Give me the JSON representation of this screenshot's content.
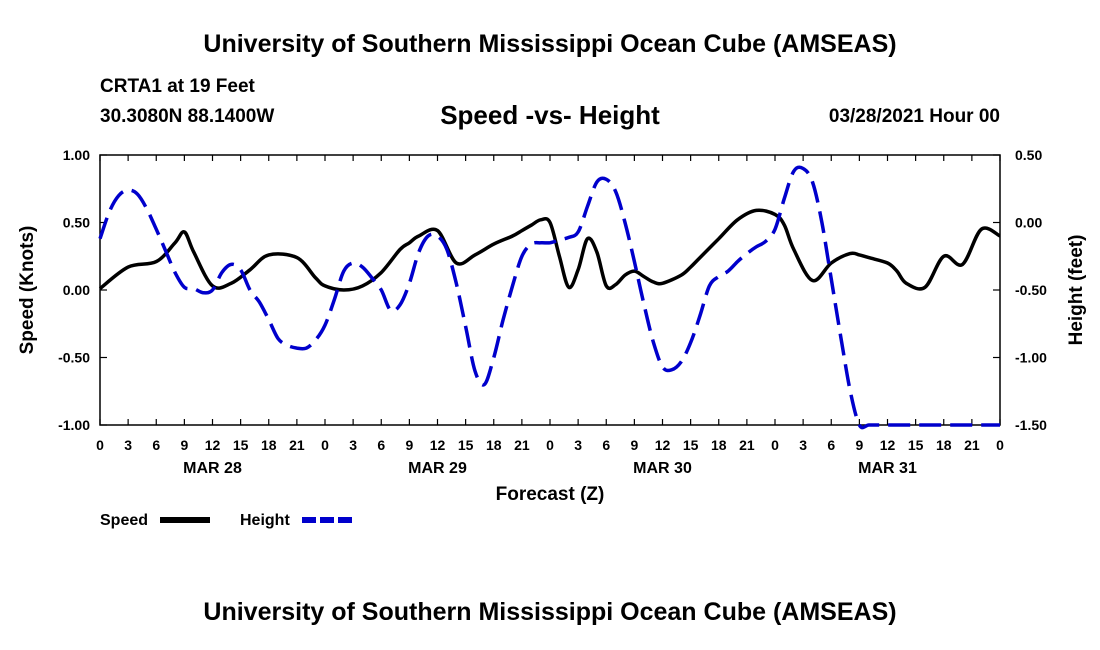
{
  "header": {
    "title": "University of Southern Mississippi Ocean Cube (AMSEAS)",
    "station": "CRTA1 at 19 Feet",
    "coordinates": "30.3080N  88.1400W",
    "subtitle": "Speed -vs- Height",
    "datetime": "03/28/2021 Hour 00"
  },
  "footer": {
    "title": "University of Southern Mississippi Ocean Cube (AMSEAS)"
  },
  "chart_data": {
    "type": "line",
    "xlabel": "Forecast (Z)",
    "ylabel": "Speed (Knots)",
    "y2label": "Height (feet)",
    "xlim": [
      0,
      96
    ],
    "ylim": [
      -1.0,
      1.0
    ],
    "y2lim": [
      -1.5,
      0.5
    ],
    "x_ticks": [
      0,
      3,
      6,
      9,
      12,
      15,
      18,
      21,
      24,
      27,
      30,
      33,
      36,
      39,
      42,
      45,
      48,
      51,
      54,
      57,
      60,
      63,
      66,
      69,
      72,
      75,
      78,
      81,
      84,
      87,
      90,
      93,
      96
    ],
    "x_tick_labels": [
      "0",
      "3",
      "6",
      "9",
      "12",
      "15",
      "18",
      "21",
      "0",
      "3",
      "6",
      "9",
      "12",
      "15",
      "18",
      "21",
      "0",
      "3",
      "6",
      "9",
      "12",
      "15",
      "18",
      "21",
      "0",
      "3",
      "6",
      "9",
      "12",
      "15",
      "18",
      "21",
      "0"
    ],
    "date_labels": [
      {
        "x": 12,
        "label": "MAR 28"
      },
      {
        "x": 36,
        "label": "MAR 29"
      },
      {
        "x": 60,
        "label": "MAR 30"
      },
      {
        "x": 84,
        "label": "MAR 31"
      }
    ],
    "y_ticks": [
      1.0,
      0.5,
      0.0,
      -0.5,
      -1.0
    ],
    "y_tick_labels": [
      "1.00",
      "0.50",
      "0.00",
      "-0.50",
      "-1.00"
    ],
    "y2_ticks": [
      0.5,
      0.0,
      -0.5,
      -1.0,
      -1.5
    ],
    "y2_tick_labels": [
      "0.50",
      "0.00",
      "-0.50",
      "-1.00",
      "-1.50"
    ],
    "series": [
      {
        "name": "Speed",
        "axis": "left",
        "color": "#000000",
        "dash": "solid",
        "x": [
          0,
          3,
          6,
          8,
          9,
          10,
          12,
          14,
          16,
          18,
          21,
          23,
          24,
          26,
          28,
          30,
          32,
          33,
          34,
          36,
          38,
          40,
          42,
          44,
          45,
          46,
          47,
          48,
          49,
          50,
          51,
          52,
          53,
          54,
          55,
          56,
          57,
          58,
          59,
          60,
          62,
          63,
          64,
          66,
          68,
          70,
          72,
          73,
          74,
          76,
          78,
          80,
          81,
          82,
          84,
          85,
          86,
          88,
          90,
          92,
          94,
          96
        ],
        "values": [
          0.01,
          0.17,
          0.21,
          0.35,
          0.43,
          0.28,
          0.03,
          0.05,
          0.15,
          0.26,
          0.24,
          0.09,
          0.03,
          0.0,
          0.03,
          0.13,
          0.3,
          0.35,
          0.4,
          0.44,
          0.2,
          0.26,
          0.34,
          0.4,
          0.44,
          0.48,
          0.52,
          0.5,
          0.25,
          0.02,
          0.15,
          0.38,
          0.28,
          0.03,
          0.04,
          0.11,
          0.14,
          0.1,
          0.06,
          0.05,
          0.11,
          0.17,
          0.24,
          0.38,
          0.52,
          0.59,
          0.56,
          0.48,
          0.3,
          0.07,
          0.2,
          0.27,
          0.26,
          0.24,
          0.2,
          0.14,
          0.05,
          0.02,
          0.25,
          0.19,
          0.45,
          0.4
        ]
      },
      {
        "name": "Height",
        "axis": "right",
        "color": "#0000cc",
        "dash": "dashed",
        "x": [
          0,
          1,
          2,
          3,
          4,
          5,
          6,
          7,
          8,
          9,
          10,
          11,
          12,
          13,
          14,
          15,
          16,
          17,
          18,
          19,
          20,
          21,
          22,
          23,
          24,
          25,
          26,
          27,
          28,
          29,
          30,
          31,
          32,
          33,
          34,
          35,
          36,
          37,
          38,
          39,
          40,
          41,
          42,
          43,
          44,
          45,
          46,
          47,
          48,
          49,
          50,
          51,
          52,
          53,
          54,
          55,
          56,
          57,
          58,
          59,
          60,
          61,
          62,
          63,
          64,
          65,
          66,
          67,
          68,
          69,
          70,
          71,
          72,
          73,
          74,
          75,
          76,
          77,
          78,
          79,
          80,
          81,
          82,
          83,
          84,
          85,
          86,
          87,
          88,
          89,
          90,
          91,
          92,
          93,
          94,
          95,
          96
        ],
        "values": [
          -0.12,
          0.08,
          0.2,
          0.24,
          0.21,
          0.1,
          -0.05,
          -0.21,
          -0.37,
          -0.48,
          -0.49,
          -0.52,
          -0.5,
          -0.37,
          -0.31,
          -0.35,
          -0.5,
          -0.59,
          -0.72,
          -0.86,
          -0.91,
          -0.93,
          -0.93,
          -0.87,
          -0.76,
          -0.57,
          -0.36,
          -0.3,
          -0.33,
          -0.41,
          -0.5,
          -0.65,
          -0.61,
          -0.45,
          -0.22,
          -0.1,
          -0.1,
          -0.2,
          -0.45,
          -0.77,
          -1.1,
          -1.2,
          -1.0,
          -0.72,
          -0.47,
          -0.25,
          -0.16,
          -0.15,
          -0.15,
          -0.13,
          -0.11,
          -0.07,
          0.12,
          0.3,
          0.32,
          0.23,
          0.0,
          -0.29,
          -0.6,
          -0.88,
          -1.07,
          -1.09,
          -1.03,
          -0.89,
          -0.69,
          -0.47,
          -0.4,
          -0.36,
          -0.29,
          -0.23,
          -0.18,
          -0.14,
          -0.05,
          0.18,
          0.38,
          0.4,
          0.3,
          0.0,
          -0.42,
          -0.84,
          -1.24,
          -1.5,
          -1.5,
          -1.5,
          -1.5,
          -1.5,
          -1.5,
          -1.5,
          -1.5,
          -1.5,
          -1.5,
          -1.5,
          -1.5,
          -1.5,
          -1.5,
          -1.5,
          -1.5
        ]
      }
    ],
    "legend": [
      {
        "label": "Speed",
        "color": "#000000",
        "dash": "solid"
      },
      {
        "label": "Height",
        "color": "#0000cc",
        "dash": "dashed"
      }
    ],
    "grid": false
  }
}
